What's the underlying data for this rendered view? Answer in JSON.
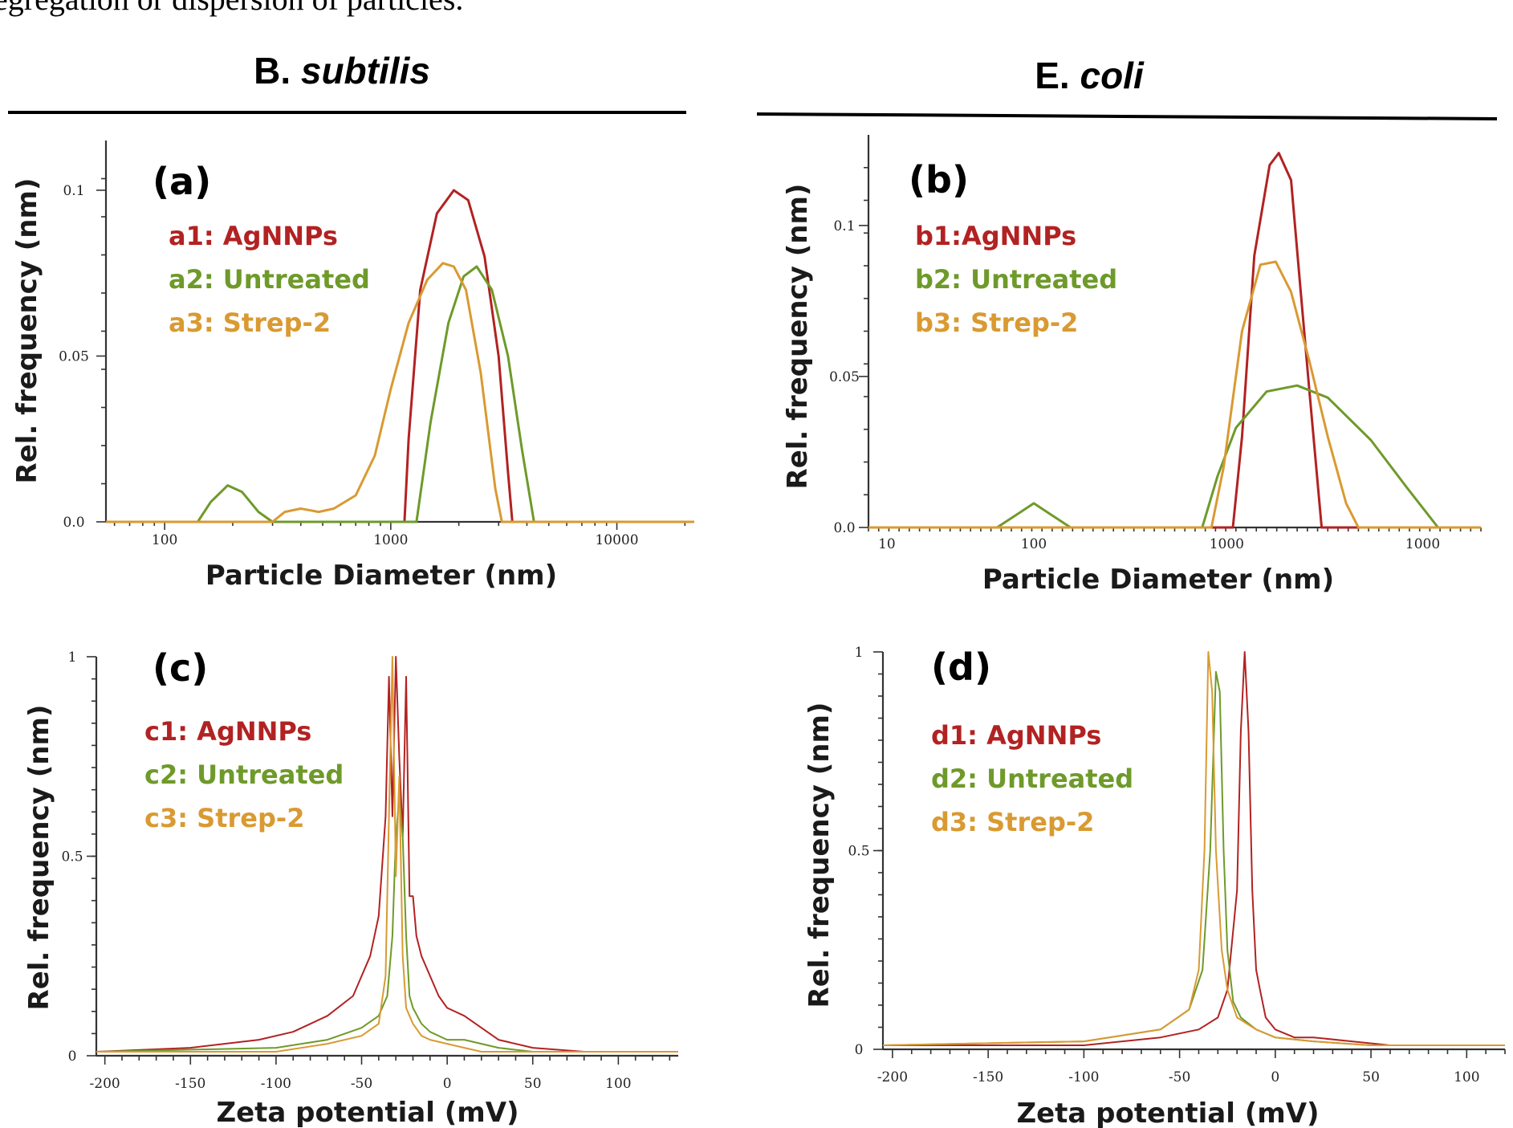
{
  "caption_text": "egregation or dispersion of particles.",
  "column_titles": [
    {
      "plain": "B. ",
      "italic": "subtilis"
    },
    {
      "plain": "E. ",
      "italic": "coli"
    }
  ],
  "colors": {
    "agnnps": "#b22222",
    "untreated": "#6e9a2a",
    "strep2": "#d99a32"
  },
  "chart_data": [
    {
      "panel": "(a)",
      "type": "line",
      "xlabel": "Particle Diameter (nm)",
      "ylabel": "Rel. frequency (nm)",
      "x_scale": "log",
      "xlim": [
        55,
        22000
      ],
      "ylim": [
        0,
        0.115
      ],
      "x_ticks": [
        {
          "v": 100,
          "t": "100"
        },
        {
          "v": 1000,
          "t": "1000"
        },
        {
          "v": 10000,
          "t": "10000"
        }
      ],
      "y_ticks": [
        {
          "v": 0,
          "t": "0.0"
        },
        {
          "v": 0.05,
          "t": "0.05"
        },
        {
          "v": 0.1,
          "t": "0.1"
        }
      ],
      "series": [
        {
          "name": "a1: AgNNPs",
          "color": "#b22222",
          "x": [
            55,
            1150,
            1200,
            1350,
            1600,
            1900,
            2200,
            2600,
            3000,
            3300,
            3450,
            22000
          ],
          "y": [
            0,
            0,
            0.025,
            0.07,
            0.093,
            0.1,
            0.097,
            0.08,
            0.05,
            0.015,
            0,
            0
          ]
        },
        {
          "name": "a2: Untreated",
          "color": "#6e9a2a",
          "x": [
            55,
            140,
            160,
            190,
            220,
            260,
            300,
            1300,
            1500,
            1800,
            2100,
            2400,
            2800,
            3300,
            3800,
            4300,
            22000
          ],
          "y": [
            0,
            0,
            0.006,
            0.011,
            0.009,
            0.003,
            0,
            0,
            0.03,
            0.06,
            0.074,
            0.077,
            0.07,
            0.05,
            0.022,
            0,
            0
          ]
        },
        {
          "name": "a3: Strep-2",
          "color": "#d99a32",
          "x": [
            55,
            300,
            340,
            400,
            480,
            560,
            700,
            850,
            1000,
            1200,
            1450,
            1700,
            1900,
            2150,
            2500,
            2900,
            3100,
            22000
          ],
          "y": [
            0,
            0,
            0.003,
            0.004,
            0.003,
            0.004,
            0.008,
            0.02,
            0.04,
            0.06,
            0.073,
            0.078,
            0.077,
            0.07,
            0.045,
            0.01,
            0,
            0
          ]
        }
      ]
    },
    {
      "panel": "(b)",
      "type": "line",
      "xlabel": "Particle Diameter (nm)",
      "ylabel": "Rel. frequency (nm)",
      "x_scale": "index",
      "xlim": [
        0,
        1
      ],
      "ylim": [
        0,
        0.13
      ],
      "x_ticks": [
        {
          "v": 0.03,
          "t": "10"
        },
        {
          "v": 0.27,
          "t": "100"
        },
        {
          "v": 0.585,
          "t": "1000"
        },
        {
          "v": 0.905,
          "t": "1000"
        }
      ],
      "y_ticks": [
        {
          "v": 0,
          "t": "0.0"
        },
        {
          "v": 0.05,
          "t": "0.05"
        },
        {
          "v": 0.1,
          "t": "0.1"
        }
      ],
      "series": [
        {
          "name": "b1:AgNNPs",
          "color": "#b22222",
          "x": [
            0,
            0.595,
            0.61,
            0.63,
            0.655,
            0.67,
            0.69,
            0.705,
            0.72,
            0.74,
            1
          ],
          "y": [
            0,
            0,
            0.03,
            0.09,
            0.12,
            0.124,
            0.115,
            0.08,
            0.045,
            0,
            0
          ]
        },
        {
          "name": "b2: Untreated",
          "color": "#6e9a2a",
          "x": [
            0,
            0.21,
            0.24,
            0.27,
            0.3,
            0.33,
            0.545,
            0.57,
            0.6,
            0.65,
            0.7,
            0.75,
            0.82,
            0.88,
            0.93,
            1
          ],
          "y": [
            0,
            0,
            0.004,
            0.008,
            0.004,
            0,
            0,
            0.017,
            0.033,
            0.045,
            0.047,
            0.043,
            0.029,
            0.013,
            0,
            0
          ]
        },
        {
          "name": "b3: Strep-2",
          "color": "#d99a32",
          "x": [
            0,
            0.56,
            0.58,
            0.61,
            0.64,
            0.665,
            0.69,
            0.72,
            0.75,
            0.78,
            0.8,
            1
          ],
          "y": [
            0,
            0,
            0.02,
            0.065,
            0.087,
            0.088,
            0.078,
            0.055,
            0.03,
            0.008,
            0,
            0
          ]
        }
      ]
    },
    {
      "panel": "(c)",
      "type": "line",
      "xlabel": "Zeta potential (mV)",
      "ylabel": "Rel. frequency (nm)",
      "x_scale": "linear",
      "xlim": [
        -205,
        135
      ],
      "ylim": [
        0,
        1
      ],
      "x_ticks": [
        {
          "v": -200,
          "t": "-200"
        },
        {
          "v": -150,
          "t": "-150"
        },
        {
          "v": -100,
          "t": "-100"
        },
        {
          "v": -50,
          "t": "-50"
        },
        {
          "v": 0,
          "t": "0"
        },
        {
          "v": 50,
          "t": "50"
        },
        {
          "v": 100,
          "t": "100"
        }
      ],
      "y_ticks": [
        {
          "v": 0,
          "t": "0"
        },
        {
          "v": 0.5,
          "t": "0.5"
        },
        {
          "v": 1,
          "t": "1"
        }
      ],
      "series": [
        {
          "name": "c1: AgNNPs",
          "color": "#b22222",
          "x": [
            -205,
            -150,
            -110,
            -90,
            -70,
            -55,
            -45,
            -40,
            -36,
            -34,
            -32,
            -30,
            -28,
            -26,
            -24,
            -22,
            -20,
            -18,
            -15,
            -10,
            -5,
            0,
            10,
            20,
            30,
            50,
            80,
            135
          ],
          "y": [
            0.01,
            0.02,
            0.04,
            0.06,
            0.1,
            0.15,
            0.25,
            0.35,
            0.6,
            0.95,
            0.6,
            1.0,
            0.75,
            0.55,
            0.95,
            0.4,
            0.4,
            0.3,
            0.25,
            0.2,
            0.15,
            0.12,
            0.1,
            0.07,
            0.04,
            0.02,
            0.01,
            0.01
          ]
        },
        {
          "name": "c2: Untreated",
          "color": "#6e9a2a",
          "x": [
            -205,
            -100,
            -70,
            -50,
            -40,
            -35,
            -32,
            -30,
            -28,
            -26,
            -24,
            -22,
            -20,
            -15,
            -10,
            0,
            10,
            20,
            30,
            50,
            135
          ],
          "y": [
            0.01,
            0.02,
            0.04,
            0.07,
            0.1,
            0.15,
            0.3,
            0.55,
            0.65,
            0.55,
            0.3,
            0.15,
            0.12,
            0.08,
            0.06,
            0.04,
            0.04,
            0.03,
            0.02,
            0.01,
            0.01
          ]
        },
        {
          "name": "c3: Strep-2",
          "color": "#d99a32",
          "x": [
            -205,
            -100,
            -70,
            -50,
            -40,
            -36,
            -34,
            -32,
            -30,
            -28,
            -26,
            -24,
            -22,
            -20,
            -15,
            -10,
            0,
            10,
            20,
            50,
            135
          ],
          "y": [
            0.01,
            0.01,
            0.03,
            0.05,
            0.08,
            0.2,
            0.6,
            1.0,
            0.45,
            0.7,
            0.25,
            0.12,
            0.1,
            0.08,
            0.05,
            0.04,
            0.03,
            0.02,
            0.01,
            0.01,
            0.01
          ]
        }
      ]
    },
    {
      "panel": "(d)",
      "type": "line",
      "xlabel": "Zeta potential (mV)",
      "ylabel": "Rel. frequency (nm)",
      "x_scale": "linear",
      "xlim": [
        -205,
        120
      ],
      "ylim": [
        0,
        1
      ],
      "x_ticks": [
        {
          "v": -200,
          "t": "-200"
        },
        {
          "v": -150,
          "t": "-150"
        },
        {
          "v": -100,
          "t": "-100"
        },
        {
          "v": -50,
          "t": "-50"
        },
        {
          "v": 0,
          "t": "0"
        },
        {
          "v": 50,
          "t": "50"
        },
        {
          "v": 100,
          "t": "100"
        }
      ],
      "y_ticks": [
        {
          "v": 0,
          "t": "0"
        },
        {
          "v": 0.5,
          "t": "0.5"
        },
        {
          "v": 1,
          "t": "1"
        }
      ],
      "series": [
        {
          "name": "d1: AgNNPs",
          "color": "#b22222",
          "x": [
            -205,
            -100,
            -60,
            -40,
            -30,
            -25,
            -20,
            -18,
            -16,
            -14,
            -12,
            -10,
            -8,
            -5,
            0,
            10,
            20,
            40,
            60,
            120
          ],
          "y": [
            0.01,
            0.01,
            0.03,
            0.05,
            0.08,
            0.15,
            0.4,
            0.8,
            1.0,
            0.8,
            0.4,
            0.2,
            0.15,
            0.08,
            0.05,
            0.03,
            0.03,
            0.02,
            0.01,
            0.01
          ]
        },
        {
          "name": "d2: Untreated",
          "color": "#6e9a2a",
          "x": [
            -205,
            -100,
            -60,
            -45,
            -38,
            -34,
            -31,
            -29,
            -27,
            -25,
            -22,
            -18,
            -10,
            0,
            20,
            50,
            120
          ],
          "y": [
            0.01,
            0.02,
            0.05,
            0.1,
            0.2,
            0.5,
            0.95,
            0.9,
            0.5,
            0.25,
            0.12,
            0.08,
            0.05,
            0.03,
            0.02,
            0.01,
            0.01
          ]
        },
        {
          "name": "d3: Strep-2",
          "color": "#d99a32",
          "x": [
            -205,
            -100,
            -60,
            -45,
            -40,
            -37,
            -35,
            -33,
            -31,
            -28,
            -25,
            -20,
            -10,
            0,
            20,
            50,
            120
          ],
          "y": [
            0.01,
            0.02,
            0.05,
            0.1,
            0.2,
            0.5,
            1.0,
            0.9,
            0.5,
            0.25,
            0.15,
            0.08,
            0.05,
            0.03,
            0.02,
            0.01,
            0.01
          ]
        }
      ]
    }
  ]
}
